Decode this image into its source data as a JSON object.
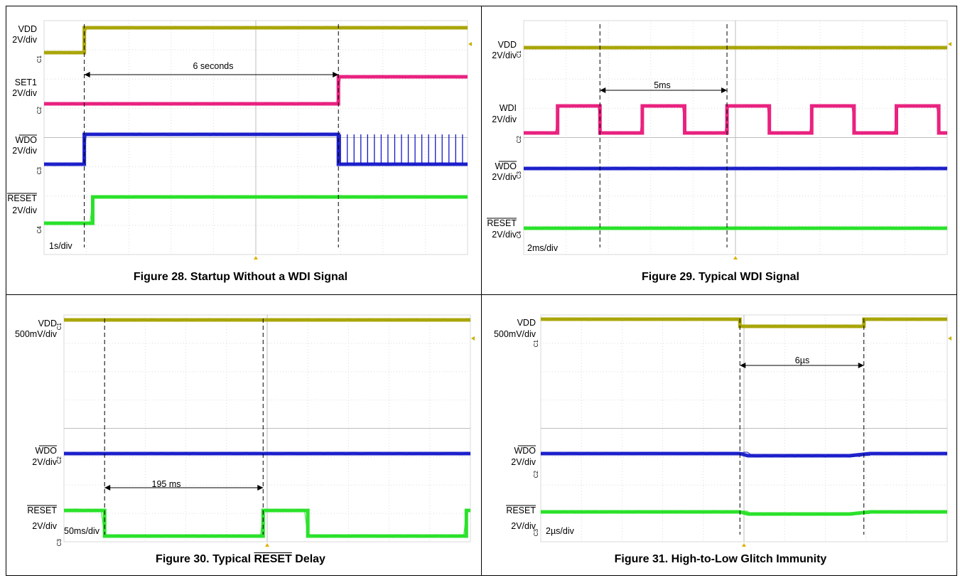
{
  "panels": [
    {
      "caption_parts": [
        "Figure 28. Startup Without a WDI Signal"
      ],
      "timebase": "1s/div",
      "annotation": "6 seconds",
      "channels": [
        {
          "name": "VDD",
          "scale": "2V/div",
          "overline": false,
          "color": "#a6a200"
        },
        {
          "name": "SET1",
          "scale": "2V/div",
          "overline": false,
          "color": "#e8197a"
        },
        {
          "name": "WDO",
          "scale": "2V/div",
          "overline": true,
          "color": "#1418c8"
        },
        {
          "name": "RESET",
          "scale": "2V/div",
          "overline": true,
          "color": "#22e022"
        }
      ]
    },
    {
      "caption_parts": [
        "Figure 29. Typical WDI Signal"
      ],
      "timebase": "2ms/div",
      "annotation": "5ms",
      "channels": [
        {
          "name": "VDD",
          "scale": "2V/div",
          "overline": false,
          "color": "#a6a200"
        },
        {
          "name": "WDI",
          "scale": "2V/div",
          "overline": false,
          "color": "#e8197a"
        },
        {
          "name": "WDO",
          "scale": "2V/div",
          "overline": true,
          "color": "#1418c8"
        },
        {
          "name": "RESET",
          "scale": "2V/div",
          "overline": true,
          "color": "#22e022"
        }
      ]
    },
    {
      "caption_parts": [
        "Figure 30. Typical ",
        "RESET",
        " Delay"
      ],
      "timebase": "50ms/div",
      "annotation": "195 ms",
      "channels": [
        {
          "name": "VDD",
          "scale": "500mV/div",
          "overline": false,
          "color": "#a6a200"
        },
        {
          "name": "WDO",
          "scale": "2V/div",
          "overline": true,
          "color": "#1418c8"
        },
        {
          "name": "RESET",
          "scale": "2V/div",
          "overline": true,
          "color": "#22e022"
        }
      ]
    },
    {
      "caption_parts": [
        "Figure 31. High-to-Low Glitch Immunity"
      ],
      "timebase": "2µs/div",
      "annotation": "6µs",
      "channels": [
        {
          "name": "VDD",
          "scale": "500mV/div",
          "overline": false,
          "color": "#a6a200"
        },
        {
          "name": "WDO",
          "scale": "2V/div",
          "overline": true,
          "color": "#1418c8"
        },
        {
          "name": "RESET",
          "scale": "2V/div",
          "overline": true,
          "color": "#22e022"
        }
      ]
    }
  ],
  "chart_data": [
    {
      "type": "line",
      "title": "Figure 28. Startup Without a WDI Signal",
      "xlabel": "1s/div",
      "xlim": [
        0,
        10
      ],
      "series": [
        {
          "name": "VDD",
          "x": [
            0,
            0.95,
            0.95,
            10
          ],
          "y": [
            0,
            0,
            1,
            1
          ]
        },
        {
          "name": "SET1",
          "x": [
            0,
            6.95,
            6.95,
            10
          ],
          "y": [
            0,
            0,
            1,
            1
          ]
        },
        {
          "name": "WDO",
          "x": [
            0,
            0.95,
            0.95,
            6.95,
            6.95,
            10
          ],
          "y": [
            0,
            0,
            1,
            1,
            0,
            0
          ]
        },
        {
          "name": "RESET",
          "x": [
            0,
            1.15,
            1.15,
            10
          ],
          "y": [
            0,
            0,
            1,
            1
          ]
        }
      ]
    },
    {
      "type": "line",
      "title": "Figure 29. Typical WDI Signal",
      "xlabel": "2ms/div",
      "xlim": [
        0,
        10
      ],
      "series": [
        {
          "name": "VDD",
          "x": [
            0,
            10
          ],
          "y": [
            1,
            1
          ]
        },
        {
          "name": "WDI",
          "x": [
            0,
            0.8,
            0.8,
            1.8,
            1.8,
            2.8,
            2.8,
            3.8,
            3.8,
            4.8,
            4.8,
            5.8,
            5.8,
            6.8,
            6.8,
            7.8,
            7.8,
            8.8,
            8.8,
            9.8,
            9.8,
            10
          ],
          "y": [
            0,
            0,
            1,
            1,
            0,
            0,
            1,
            1,
            0,
            0,
            1,
            1,
            0,
            0,
            1,
            1,
            0,
            0,
            1,
            1,
            0,
            0
          ]
        },
        {
          "name": "WDO",
          "x": [
            0,
            10
          ],
          "y": [
            1,
            1
          ]
        },
        {
          "name": "RESET",
          "x": [
            0,
            10
          ],
          "y": [
            1,
            1
          ]
        }
      ]
    },
    {
      "type": "line",
      "title": "Figure 30. Typical RESET Delay",
      "xlabel": "50ms/div",
      "xlim": [
        0,
        10
      ],
      "series": [
        {
          "name": "VDD",
          "x": [
            0,
            10
          ],
          "y": [
            1,
            1
          ]
        },
        {
          "name": "WDO",
          "x": [
            0,
            10
          ],
          "y": [
            1,
            1
          ]
        },
        {
          "name": "RESET",
          "x": [
            0,
            1.0,
            1.0,
            4.9,
            4.9,
            6.0,
            6.0,
            9.9,
            9.9,
            10
          ],
          "y": [
            1,
            1,
            0,
            0,
            1,
            1,
            0,
            0,
            1,
            1
          ]
        }
      ]
    },
    {
      "type": "line",
      "title": "Figure 31. High-to-Low Glitch Immunity",
      "xlabel": "2µs/div",
      "xlim": [
        0,
        10
      ],
      "series": [
        {
          "name": "VDD",
          "x": [
            0,
            4.9,
            4.9,
            7.95,
            7.95,
            10
          ],
          "y": [
            1,
            1,
            0.6,
            0.6,
            1,
            1
          ]
        },
        {
          "name": "WDO",
          "x": [
            0,
            4.9,
            5.1,
            7.6,
            8.1,
            10
          ],
          "y": [
            1,
            1,
            0.85,
            0.85,
            1,
            1
          ]
        },
        {
          "name": "RESET",
          "x": [
            0,
            4.9,
            5.1,
            7.6,
            8.1,
            10
          ],
          "y": [
            1,
            1,
            0.85,
            0.85,
            1,
            1
          ]
        }
      ]
    }
  ]
}
